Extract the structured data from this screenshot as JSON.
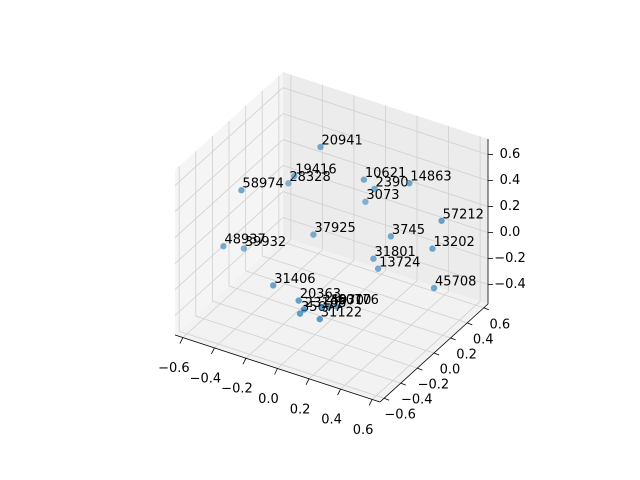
{
  "chart_data": {
    "type": "scatter3d",
    "color": "#1f77b4",
    "depthshade": true,
    "xlim": [
      -0.65,
      0.65
    ],
    "ylim": [
      -0.65,
      0.65
    ],
    "zlim": [
      -0.55,
      0.72
    ],
    "xticks": [
      {
        "value": -0.6,
        "label": "−0.6"
      },
      {
        "value": -0.4,
        "label": "−0.4"
      },
      {
        "value": -0.2,
        "label": "−0.2"
      },
      {
        "value": 0,
        "label": "0.0"
      },
      0.2,
      0.4,
      0.6
    ],
    "yticks": [
      {
        "value": -0.6,
        "label": "−0.6"
      },
      {
        "value": -0.4,
        "label": "−0.4"
      },
      {
        "value": -0.2,
        "label": "−0.2"
      },
      {
        "value": 0,
        "label": "0.0"
      },
      0.2,
      0.4,
      0.6
    ],
    "zticks": [
      {
        "value": -0.4,
        "label": "−0.4"
      },
      {
        "value": -0.2,
        "label": "−0.2"
      },
      {
        "value": 0,
        "label": "0.0"
      },
      0.2,
      0.4,
      0.6
    ],
    "labels": [
      "20941",
      "19416",
      "28328",
      "58974",
      "10621",
      "14863",
      "2390",
      "3073",
      "37925",
      "48937",
      "39932",
      "3745",
      "57212",
      "13202",
      "31801",
      "13724",
      "45708",
      "31406",
      "20363",
      "25970",
      "35677",
      "23168",
      "48310",
      "60776",
      "31122"
    ],
    "x": [
      -0.17,
      -0.31,
      -0.4,
      -0.45,
      0.0,
      0.23,
      0.03,
      -0.08,
      -0.22,
      -0.58,
      -0.54,
      0.15,
      0.44,
      0.34,
      0.05,
      0.09,
      0.35,
      -0.28,
      -0.15,
      -0.01,
      -0.11,
      -0.08,
      -0.01,
      -0.01,
      0.01
    ],
    "y": [
      0.19,
      0.14,
      0.24,
      -0.23,
      0.39,
      0.5,
      0.46,
      0.56,
      0.2,
      -0.2,
      -0.03,
      0.43,
      0.49,
      0.57,
      0.41,
      0.39,
      0.57,
      -0.17,
      -0.11,
      -0.1,
      -0.17,
      -0.18,
      -0.01,
      0.08,
      -0.16
    ],
    "z": [
      0.6,
      0.35,
      0.2,
      0.4,
      0.3,
      0.3,
      0.2,
      0.0,
      -0.1,
      -0.1,
      -0.2,
      -0.1,
      0.1,
      -0.2,
      -0.3,
      -0.35,
      -0.5,
      -0.3,
      -0.4,
      -0.4,
      -0.45,
      -0.4,
      -0.45,
      -0.5,
      -0.45
    ]
  }
}
